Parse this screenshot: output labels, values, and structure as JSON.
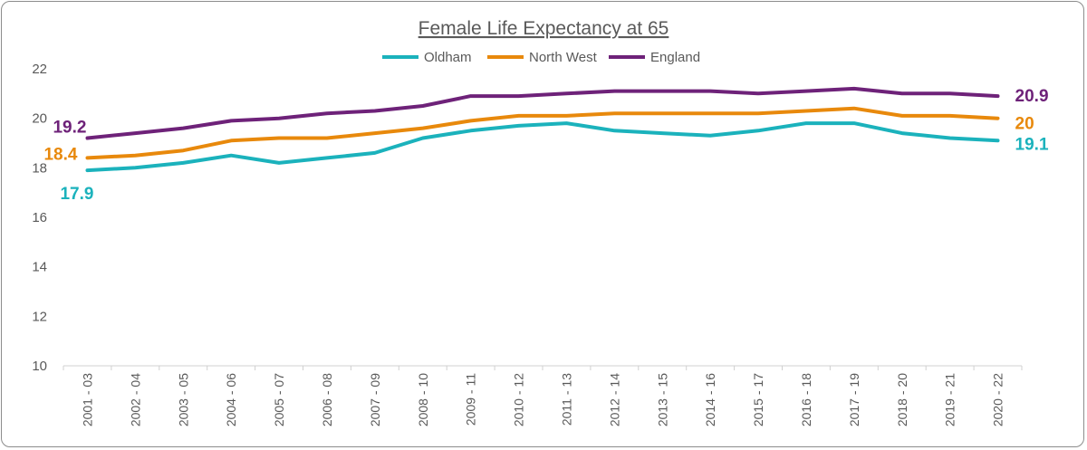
{
  "chart_data": {
    "type": "line",
    "title": "Female Life Expectancy at 65",
    "xlabel": "",
    "ylabel": "",
    "ylim": [
      10,
      22
    ],
    "yticks": [
      10,
      12,
      14,
      16,
      18,
      20,
      22
    ],
    "grid": false,
    "legend_position": "top",
    "categories": [
      "2001 - 03",
      "2002 - 04",
      "2003 - 05",
      "2004 - 06",
      "2005 - 07",
      "2006 - 08",
      "2007 - 09",
      "2008 - 10",
      "2009 - 11",
      "2010 - 12",
      "2011 - 13",
      "2012 - 14",
      "2013 - 15",
      "2014 - 16",
      "2015 - 17",
      "2016 - 18",
      "2017 - 19",
      "2018 - 20",
      "2019 - 21",
      "2020 - 22"
    ],
    "series": [
      {
        "name": "Oldham",
        "color": "#1bb2bc",
        "values": [
          17.9,
          18.0,
          18.2,
          18.5,
          18.2,
          18.4,
          18.6,
          19.2,
          19.5,
          19.7,
          19.8,
          19.5,
          19.4,
          19.3,
          19.5,
          19.8,
          19.8,
          19.4,
          19.2,
          19.1
        ],
        "labels": {
          "first": "17.9",
          "last": "19.1"
        }
      },
      {
        "name": "North West",
        "color": "#e8890c",
        "values": [
          18.4,
          18.5,
          18.7,
          19.1,
          19.2,
          19.2,
          19.4,
          19.6,
          19.9,
          20.1,
          20.1,
          20.2,
          20.2,
          20.2,
          20.2,
          20.3,
          20.4,
          20.1,
          20.1,
          20.0
        ],
        "labels": {
          "first": "18.4",
          "last": "20"
        }
      },
      {
        "name": "England",
        "color": "#6e2279",
        "values": [
          19.2,
          19.4,
          19.6,
          19.9,
          20.0,
          20.2,
          20.3,
          20.5,
          20.9,
          20.9,
          21.0,
          21.1,
          21.1,
          21.1,
          21.0,
          21.1,
          21.2,
          21.0,
          21.0,
          20.9
        ],
        "labels": {
          "first": "19.2",
          "last": "20.9"
        }
      }
    ]
  }
}
